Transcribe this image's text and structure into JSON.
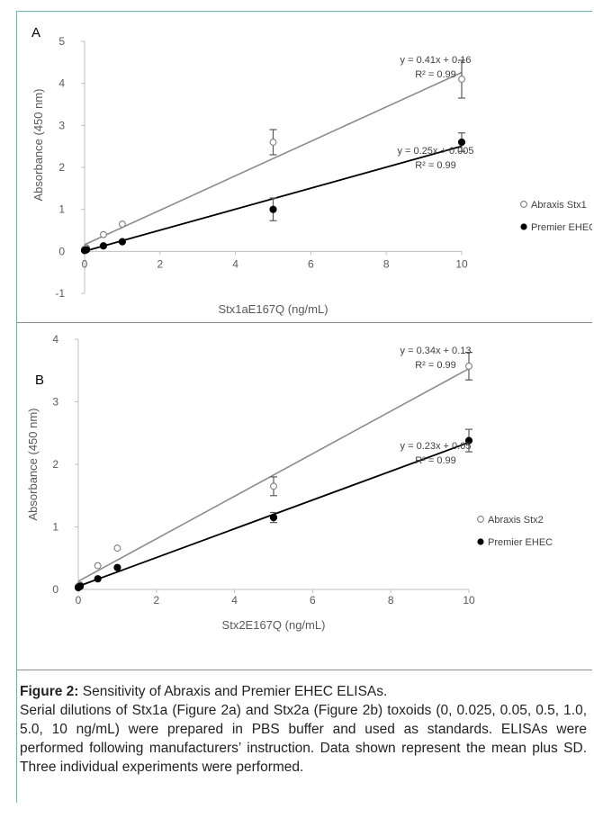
{
  "chart_data": [
    {
      "type": "scatter",
      "panel_label": "A",
      "xlabel": "Stx1aE167Q (ng/mL)",
      "ylabel": "Absorbance (450 nm)",
      "xlim": [
        0,
        10
      ],
      "ylim": [
        -1,
        5
      ],
      "x_ticks": [
        "0",
        "2",
        "4",
        "6",
        "8",
        "10"
      ],
      "y_ticks": [
        "-1",
        "0",
        "1",
        "2",
        "3",
        "4",
        "5"
      ],
      "grid": false,
      "legend_position": "right",
      "series": [
        {
          "name": "Abraxis Stx1",
          "marker": "open-circle",
          "color": "#7f7f7f",
          "x": [
            0,
            0.025,
            0.05,
            0.5,
            1.0,
            5.0,
            10
          ],
          "y": [
            0.05,
            0.06,
            0.08,
            0.4,
            0.65,
            2.6,
            4.1
          ],
          "error": [
            0,
            0,
            0,
            0,
            0,
            0.3,
            0.45
          ],
          "equation": "y = 0.41x + 0.16",
          "r2": "R² = 0.99",
          "fit": {
            "slope": 0.41,
            "intercept": 0.16
          }
        },
        {
          "name": "Premier EHEC",
          "marker": "filled-circle",
          "color": "#000000",
          "x": [
            0,
            0.025,
            0.05,
            0.5,
            1.0,
            5.0,
            10
          ],
          "y": [
            0.02,
            0.03,
            0.04,
            0.13,
            0.23,
            1.0,
            2.6
          ],
          "error": [
            0,
            0,
            0,
            0,
            0,
            0.27,
            0.22
          ],
          "equation": "y = 0.25x + 0.005",
          "r2": "R² = 0.99",
          "fit": {
            "slope": 0.25,
            "intercept": 0.005
          }
        }
      ]
    },
    {
      "type": "scatter",
      "panel_label": "B",
      "xlabel": "Stx2E167Q (ng/mL)",
      "ylabel": "Absorbance (450 nm)",
      "xlim": [
        0,
        10
      ],
      "ylim": [
        0,
        4
      ],
      "x_ticks": [
        "0",
        "2",
        "4",
        "6",
        "8",
        "10"
      ],
      "y_ticks": [
        "0",
        "1",
        "2",
        "3",
        "4"
      ],
      "grid": false,
      "legend_position": "right",
      "series": [
        {
          "name": "Abraxis Stx2",
          "marker": "open-circle",
          "color": "#7f7f7f",
          "x": [
            0,
            0.025,
            0.05,
            0.5,
            1.0,
            5.0,
            10
          ],
          "y": [
            0.05,
            0.06,
            0.07,
            0.38,
            0.66,
            1.65,
            3.57
          ],
          "error": [
            0,
            0,
            0,
            0,
            0,
            0.15,
            0.22
          ],
          "equation": "y = 0.34x + 0.13",
          "r2": "R² = 0.99",
          "fit": {
            "slope": 0.34,
            "intercept": 0.13
          }
        },
        {
          "name": "Premier EHEC",
          "marker": "filled-circle",
          "color": "#000000",
          "x": [
            0,
            0.025,
            0.05,
            0.5,
            1.0,
            5.0,
            10
          ],
          "y": [
            0.03,
            0.04,
            0.05,
            0.17,
            0.35,
            1.15,
            2.38
          ],
          "error": [
            0,
            0,
            0,
            0,
            0,
            0.08,
            0.18
          ],
          "equation": "y = 0.23x + 0.05",
          "r2": "R² = 0.99",
          "fit": {
            "slope": 0.23,
            "intercept": 0.05
          }
        }
      ]
    }
  ],
  "caption": {
    "title": "Figure 2:",
    "title_rest": " Sensitivity of Abraxis and Premier EHEC ELISAs.",
    "body": "Serial dilutions of Stx1a (Figure 2a) and Stx2a (Figure 2b) toxoids (0, 0.025, 0.05, 0.5, 1.0, 5.0, 10 ng/mL) were prepared in PBS buffer and used as standards. ELISAs were performed following manufacturers’ instruction. Data shown represent the mean plus SD. Three individual experiments were performed."
  }
}
